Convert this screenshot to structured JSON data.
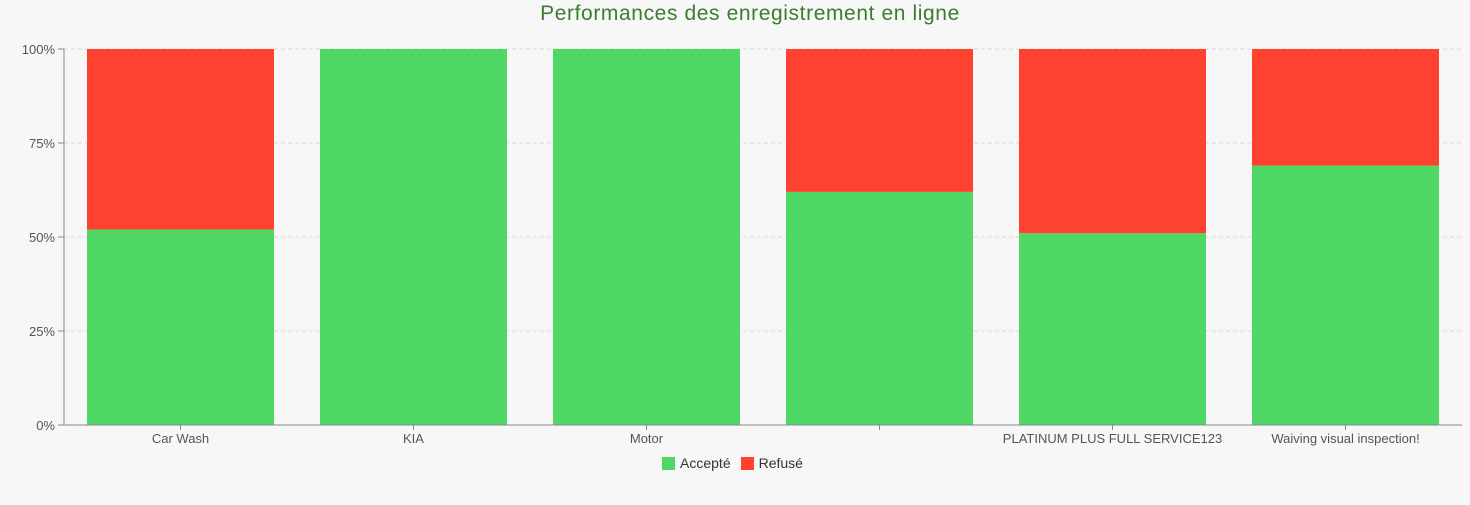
{
  "chart_data": {
    "type": "bar",
    "stacked": true,
    "normalized": true,
    "title": "Performances des enregistrement en ligne",
    "categories": [
      "Car Wash",
      "KIA",
      "Motor",
      "",
      "PLATINUM PLUS FULL SERVICE123",
      "Waiving visual inspection!"
    ],
    "series": [
      {
        "name": "Accepté",
        "color": "#4fd865",
        "values": [
          52,
          100,
          100,
          62,
          51,
          69
        ]
      },
      {
        "name": "Refusé",
        "color": "#ff412f",
        "values": [
          48,
          0,
          0,
          38,
          49,
          31
        ]
      }
    ],
    "ylim": [
      0,
      100
    ],
    "yticks": [
      "0%",
      "25%",
      "50%",
      "75%",
      "100%"
    ],
    "grid": true,
    "legend_position": "bottom"
  }
}
